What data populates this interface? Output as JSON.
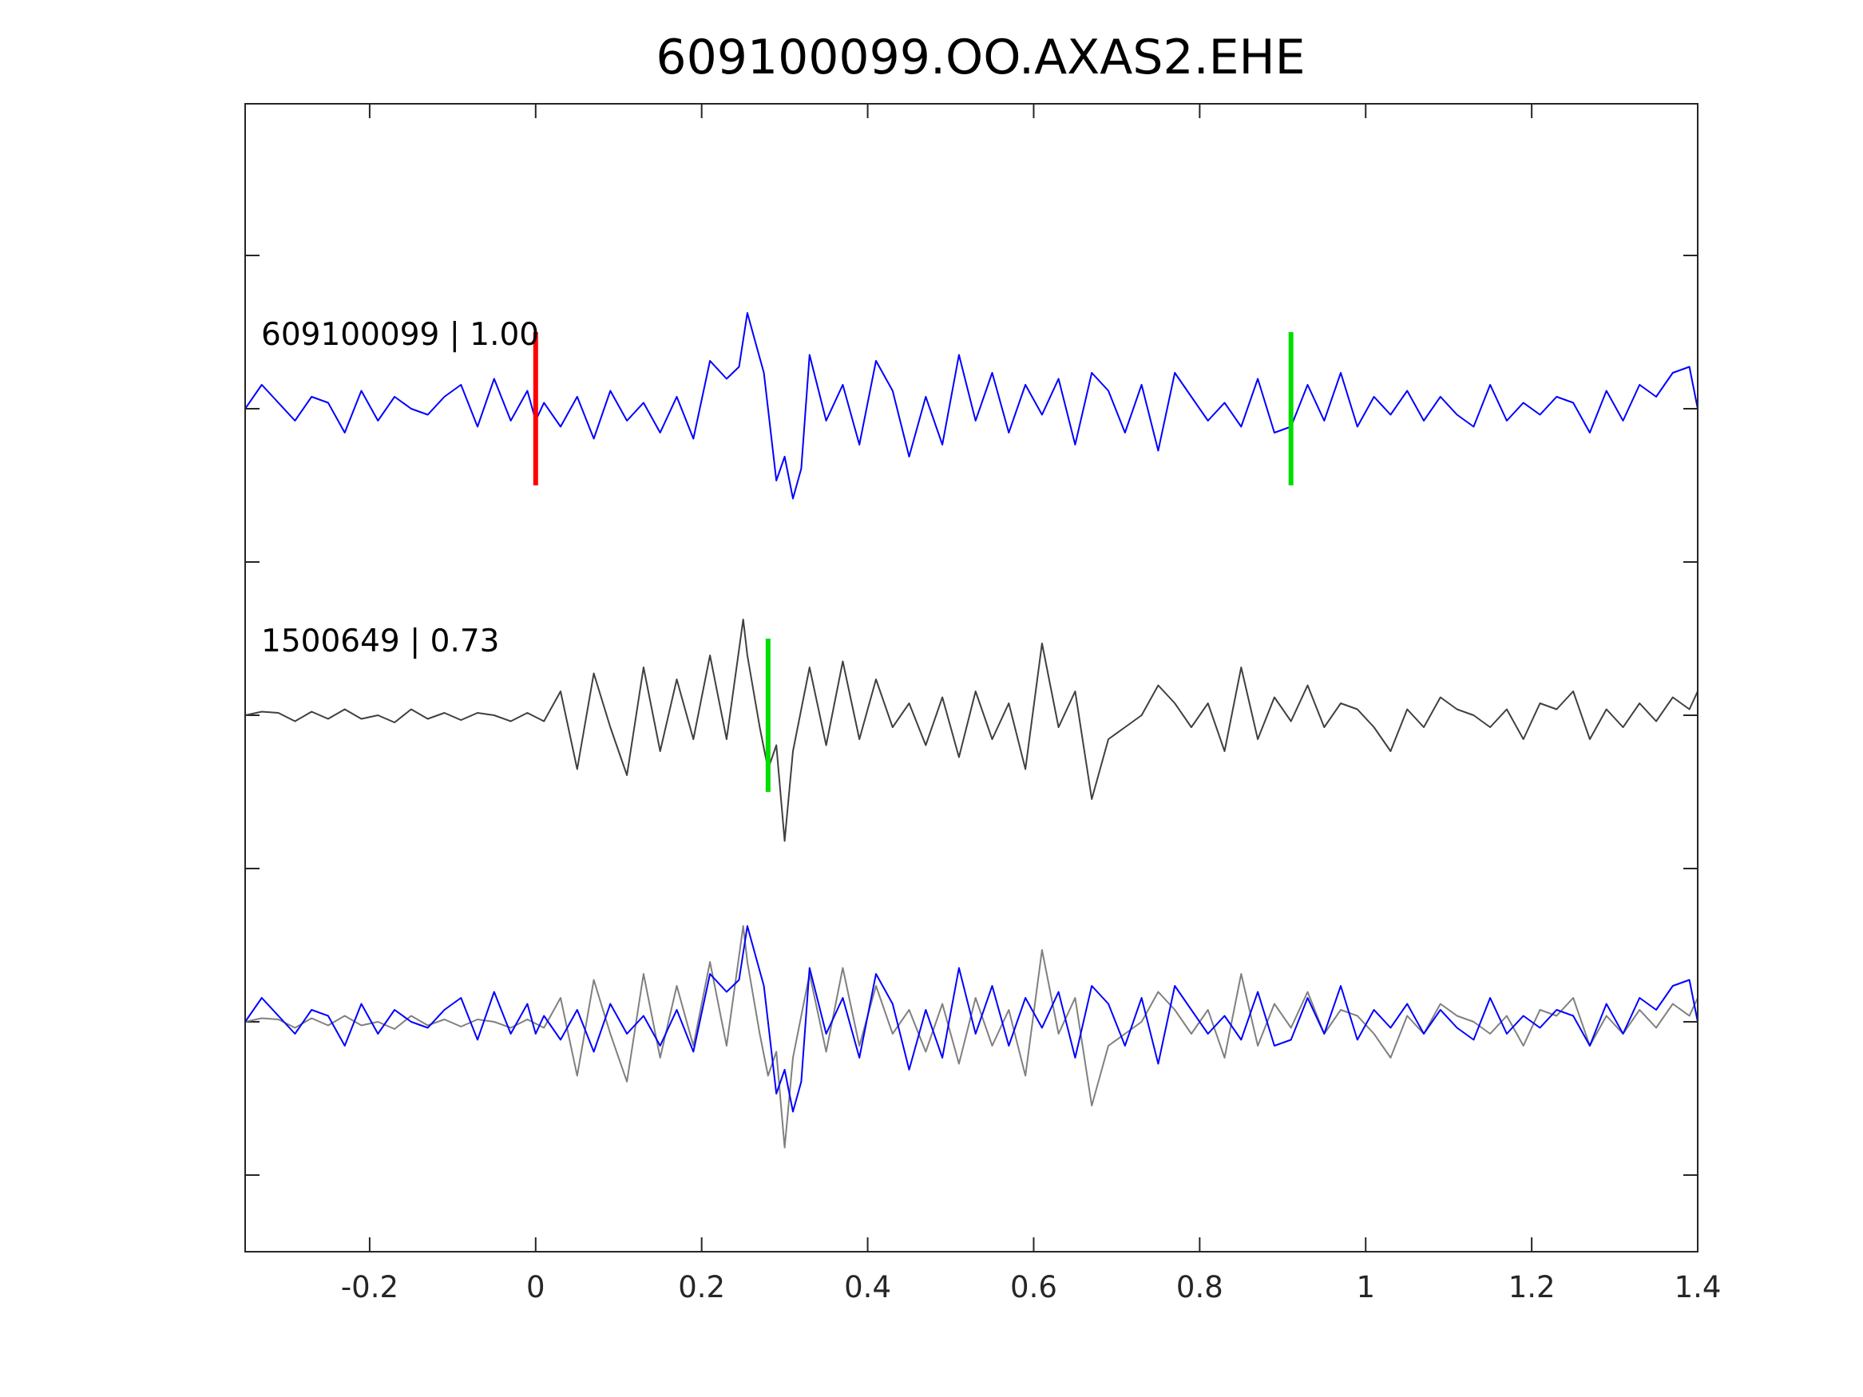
{
  "chart_data": {
    "type": "line",
    "title": "609100099.OO.AXAS2.EHE",
    "xlabel": "",
    "ylabel": "",
    "xlim": [
      -0.35,
      1.4
    ],
    "x_ticks": [
      -0.2,
      0,
      0.2,
      0.4,
      0.6,
      0.8,
      1,
      1.2,
      1.4
    ],
    "x_tick_labels": [
      "-0.2",
      "0",
      "0.2",
      "0.4",
      "0.6",
      "0.8",
      "1",
      "1.2",
      "1.4"
    ],
    "y_tick_count_per_side": 7,
    "grid": false,
    "colors": {
      "master": "#0000ff",
      "template": "#404040",
      "template_overlay": "#808080",
      "pick_p": "#ff0000",
      "pick_s": "#00dd00",
      "axis": "#262626"
    },
    "traces": [
      {
        "label": "609100099 | 1.00",
        "row": 1,
        "color": "#0000ff",
        "x": [
          -0.35,
          -0.33,
          -0.31,
          -0.29,
          -0.27,
          -0.25,
          -0.23,
          -0.21,
          -0.19,
          -0.17,
          -0.15,
          -0.13,
          -0.11,
          -0.09,
          -0.07,
          -0.05,
          -0.03,
          -0.01,
          0.0,
          0.01,
          0.03,
          0.05,
          0.07,
          0.09,
          0.11,
          0.13,
          0.15,
          0.17,
          0.19,
          0.21,
          0.23,
          0.245,
          0.255,
          0.265,
          0.275,
          0.29,
          0.3,
          0.31,
          0.32,
          0.33,
          0.35,
          0.37,
          0.39,
          0.41,
          0.43,
          0.45,
          0.47,
          0.49,
          0.51,
          0.53,
          0.55,
          0.57,
          0.59,
          0.61,
          0.63,
          0.65,
          0.67,
          0.69,
          0.71,
          0.73,
          0.75,
          0.77,
          0.79,
          0.81,
          0.83,
          0.85,
          0.87,
          0.89,
          0.91,
          0.93,
          0.95,
          0.97,
          0.99,
          1.01,
          1.03,
          1.05,
          1.07,
          1.09,
          1.11,
          1.13,
          1.15,
          1.17,
          1.19,
          1.21,
          1.23,
          1.25,
          1.27,
          1.29,
          1.31,
          1.33,
          1.35,
          1.37,
          1.39,
          1.4
        ],
        "y": [
          0.0,
          0.2,
          0.05,
          -0.1,
          0.1,
          0.05,
          -0.2,
          0.15,
          -0.1,
          0.1,
          0.0,
          -0.05,
          0.1,
          0.2,
          -0.15,
          0.25,
          -0.1,
          0.15,
          -0.1,
          0.05,
          -0.15,
          0.1,
          -0.25,
          0.15,
          -0.1,
          0.05,
          -0.2,
          0.1,
          -0.25,
          0.4,
          0.25,
          0.35,
          0.8,
          0.55,
          0.3,
          -0.6,
          -0.4,
          -0.75,
          -0.5,
          0.45,
          -0.1,
          0.2,
          -0.3,
          0.4,
          0.15,
          -0.4,
          0.1,
          -0.3,
          0.45,
          -0.1,
          0.3,
          -0.2,
          0.2,
          -0.05,
          0.25,
          -0.3,
          0.3,
          0.15,
          -0.2,
          0.2,
          -0.35,
          0.3,
          0.1,
          -0.1,
          0.05,
          -0.15,
          0.25,
          -0.2,
          -0.15,
          0.2,
          -0.1,
          0.3,
          -0.15,
          0.1,
          -0.05,
          0.15,
          -0.1,
          0.1,
          -0.05,
          -0.15,
          0.2,
          -0.1,
          0.05,
          -0.05,
          0.1,
          0.05,
          -0.2,
          0.15,
          -0.1,
          0.2,
          0.1,
          0.3,
          0.35,
          0.0
        ]
      },
      {
        "label": "1500649 | 0.73",
        "row": 2,
        "color": "#404040",
        "x": [
          -0.35,
          -0.33,
          -0.31,
          -0.29,
          -0.27,
          -0.25,
          -0.23,
          -0.21,
          -0.19,
          -0.17,
          -0.15,
          -0.13,
          -0.11,
          -0.09,
          -0.07,
          -0.05,
          -0.03,
          -0.01,
          0.01,
          0.03,
          0.05,
          0.07,
          0.09,
          0.11,
          0.13,
          0.15,
          0.17,
          0.19,
          0.21,
          0.23,
          0.25,
          0.255,
          0.27,
          0.28,
          0.29,
          0.3,
          0.31,
          0.33,
          0.35,
          0.37,
          0.39,
          0.41,
          0.43,
          0.45,
          0.47,
          0.49,
          0.51,
          0.53,
          0.55,
          0.57,
          0.59,
          0.61,
          0.63,
          0.65,
          0.67,
          0.69,
          0.71,
          0.73,
          0.75,
          0.77,
          0.79,
          0.81,
          0.83,
          0.85,
          0.87,
          0.89,
          0.91,
          0.93,
          0.95,
          0.97,
          0.99,
          1.01,
          1.03,
          1.05,
          1.07,
          1.09,
          1.11,
          1.13,
          1.15,
          1.17,
          1.19,
          1.21,
          1.23,
          1.25,
          1.27,
          1.29,
          1.31,
          1.33,
          1.35,
          1.37,
          1.39,
          1.4
        ],
        "y": [
          0.0,
          0.03,
          0.02,
          -0.05,
          0.03,
          -0.03,
          0.05,
          -0.03,
          0.0,
          -0.06,
          0.05,
          -0.03,
          0.02,
          -0.04,
          0.02,
          0.0,
          -0.05,
          0.02,
          -0.05,
          0.2,
          -0.45,
          0.35,
          -0.1,
          -0.5,
          0.4,
          -0.3,
          0.3,
          -0.2,
          0.5,
          -0.2,
          0.8,
          0.5,
          -0.1,
          -0.45,
          -0.25,
          -1.05,
          -0.3,
          0.4,
          -0.25,
          0.45,
          -0.2,
          0.3,
          -0.1,
          0.1,
          -0.25,
          0.15,
          -0.35,
          0.2,
          -0.2,
          0.1,
          -0.45,
          0.6,
          -0.1,
          0.2,
          -0.7,
          -0.2,
          -0.1,
          0.0,
          0.25,
          0.1,
          -0.1,
          0.1,
          -0.3,
          0.4,
          -0.2,
          0.15,
          -0.05,
          0.25,
          -0.1,
          0.1,
          0.05,
          -0.1,
          -0.3,
          0.05,
          -0.1,
          0.15,
          0.05,
          0.0,
          -0.1,
          0.05,
          -0.2,
          0.1,
          0.05,
          0.2,
          -0.2,
          0.05,
          -0.1,
          0.1,
          -0.05,
          0.15,
          0.05,
          0.2
        ]
      }
    ],
    "overlay": {
      "row": 3,
      "series": [
        "609100099 | 1.00",
        "1500649 | 0.73"
      ],
      "colors": [
        "#0000ff",
        "#808080"
      ]
    },
    "picks": [
      {
        "trace": "609100099 | 1.00",
        "phase": "P",
        "x": 0.0,
        "color": "#ff0000"
      },
      {
        "trace": "609100099 | 1.00",
        "phase": "S",
        "x": 0.91,
        "color": "#00dd00"
      },
      {
        "trace": "1500649 | 0.73",
        "phase": "S",
        "x": 0.28,
        "color": "#00dd00"
      }
    ]
  }
}
